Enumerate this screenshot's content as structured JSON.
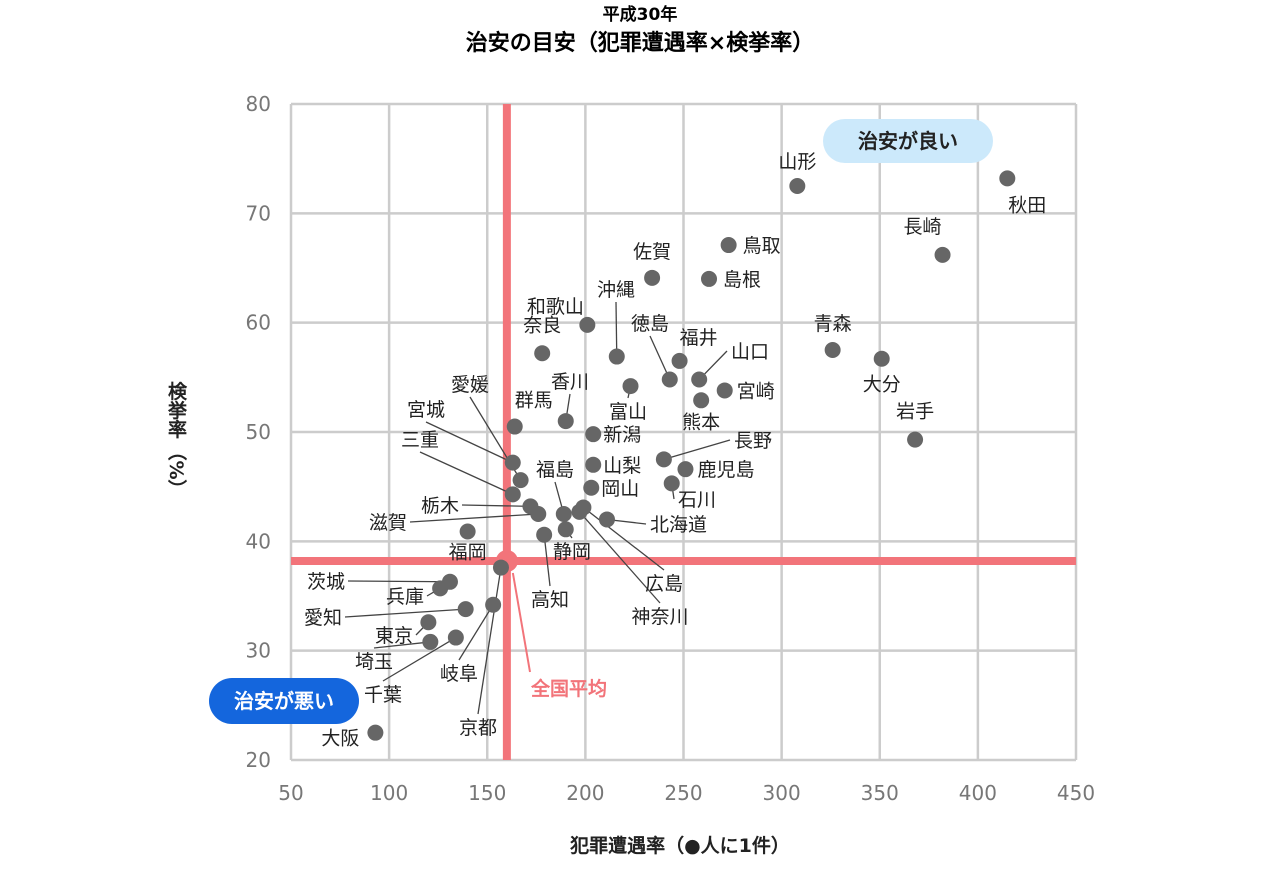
{
  "chart_data": {
    "type": "scatter",
    "subtitle": "平成30年",
    "title": "治安の目安（犯罪遭遇率×検挙率）",
    "xlabel": "犯罪遭遇率（●人に1件）",
    "ylabel_main": "検挙率",
    "ylabel_unit": "（%）",
    "xlim": [
      50,
      450
    ],
    "ylim": [
      20,
      80
    ],
    "xticks": [
      50,
      100,
      150,
      200,
      250,
      300,
      350,
      400,
      450
    ],
    "yticks": [
      20,
      30,
      40,
      50,
      60,
      70,
      80
    ],
    "grid": true,
    "colors": {
      "point": "#666666",
      "average": "#f2747a",
      "grid": "#cccccc",
      "good_bg": "#cce9fb",
      "bad_bg": "#1466dd"
    },
    "average": {
      "x": 160,
      "y": 38.2,
      "label": "全国平均"
    },
    "quadrant_labels": {
      "good": "治安が良い",
      "bad": "治安が悪い"
    },
    "points": [
      {
        "name": "北海道",
        "x": 211,
        "y": 42
      },
      {
        "name": "青森",
        "x": 326,
        "y": 57.5
      },
      {
        "name": "岩手",
        "x": 368,
        "y": 49.3
      },
      {
        "name": "宮城",
        "x": 163,
        "y": 47.2
      },
      {
        "name": "秋田",
        "x": 415,
        "y": 73.2
      },
      {
        "name": "山形",
        "x": 308,
        "y": 72.5
      },
      {
        "name": "福島",
        "x": 189,
        "y": 42.5
      },
      {
        "name": "茨城",
        "x": 131,
        "y": 36.3
      },
      {
        "name": "栃木",
        "x": 172,
        "y": 43.2
      },
      {
        "name": "群馬",
        "x": 164,
        "y": 50.5
      },
      {
        "name": "埼玉",
        "x": 121,
        "y": 30.8
      },
      {
        "name": "千葉",
        "x": 134,
        "y": 31.2
      },
      {
        "name": "東京",
        "x": 120,
        "y": 32.6
      },
      {
        "name": "神奈川",
        "x": 197,
        "y": 42.7
      },
      {
        "name": "新潟",
        "x": 204,
        "y": 49.8
      },
      {
        "name": "富山",
        "x": 223,
        "y": 54.2
      },
      {
        "name": "石川",
        "x": 244,
        "y": 45.3
      },
      {
        "name": "福井",
        "x": 248,
        "y": 56.5
      },
      {
        "name": "山梨",
        "x": 204,
        "y": 47
      },
      {
        "name": "長野",
        "x": 240,
        "y": 47.5
      },
      {
        "name": "岐阜",
        "x": 153,
        "y": 34.2
      },
      {
        "name": "静岡",
        "x": 190,
        "y": 41.1
      },
      {
        "name": "愛知",
        "x": 139,
        "y": 33.8
      },
      {
        "name": "三重",
        "x": 163,
        "y": 44.3
      },
      {
        "name": "滋賀",
        "x": 176,
        "y": 42.5
      },
      {
        "name": "京都",
        "x": 157,
        "y": 37.6
      },
      {
        "name": "大阪",
        "x": 93,
        "y": 22.5
      },
      {
        "name": "兵庫",
        "x": 126,
        "y": 35.7
      },
      {
        "name": "奈良",
        "x": 178,
        "y": 57.2
      },
      {
        "name": "和歌山",
        "x": 201,
        "y": 59.8
      },
      {
        "name": "鳥取",
        "x": 273,
        "y": 67.1
      },
      {
        "name": "島根",
        "x": 263,
        "y": 64
      },
      {
        "name": "岡山",
        "x": 203,
        "y": 44.9
      },
      {
        "name": "広島",
        "x": 199,
        "y": 43.1
      },
      {
        "name": "山口",
        "x": 258,
        "y": 54.8
      },
      {
        "name": "徳島",
        "x": 243,
        "y": 54.8
      },
      {
        "name": "香川",
        "x": 190,
        "y": 51
      },
      {
        "name": "愛媛",
        "x": 167,
        "y": 45.6
      },
      {
        "name": "高知",
        "x": 179,
        "y": 40.6
      },
      {
        "name": "福岡",
        "x": 140,
        "y": 40.9
      },
      {
        "name": "佐賀",
        "x": 234,
        "y": 64.1
      },
      {
        "name": "長崎",
        "x": 382,
        "y": 66.2
      },
      {
        "name": "熊本",
        "x": 259,
        "y": 52.9
      },
      {
        "name": "大分",
        "x": 351,
        "y": 56.7
      },
      {
        "name": "宮崎",
        "x": 271,
        "y": 53.8
      },
      {
        "name": "鹿児島",
        "x": 251,
        "y": 46.6
      },
      {
        "name": "沖縄",
        "x": 216,
        "y": 56.9
      }
    ]
  }
}
